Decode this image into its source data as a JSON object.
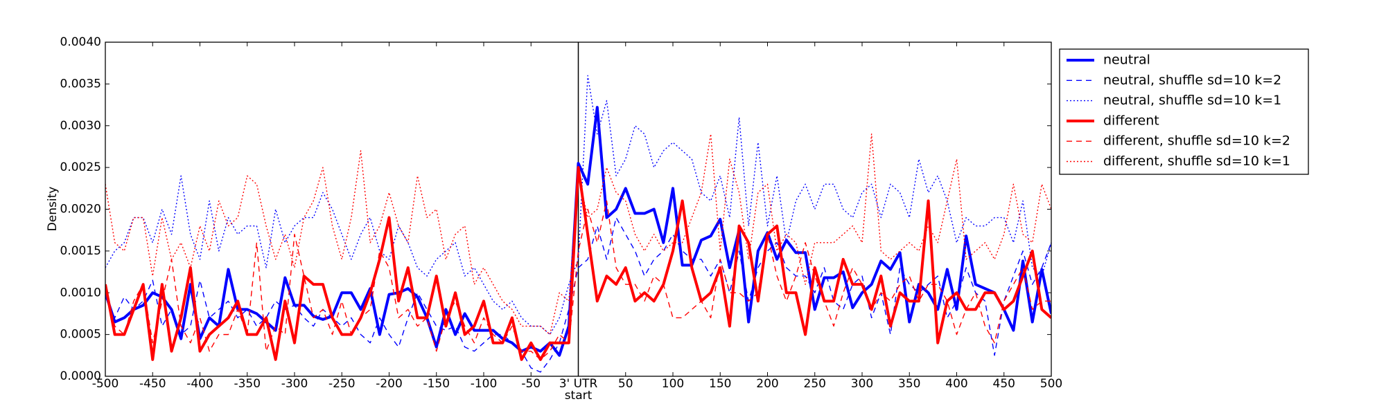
{
  "chart_data": {
    "type": "line",
    "ylabel": "Density",
    "x": [
      -500,
      -490,
      -480,
      -470,
      -460,
      -450,
      -440,
      -430,
      -420,
      -410,
      -400,
      -390,
      -380,
      -370,
      -360,
      -350,
      -340,
      -330,
      -320,
      -310,
      -300,
      -290,
      -280,
      -270,
      -260,
      -250,
      -240,
      -230,
      -220,
      -210,
      -200,
      -190,
      -180,
      -170,
      -160,
      -150,
      -140,
      -130,
      -120,
      -110,
      -100,
      -90,
      -80,
      -70,
      -60,
      -50,
      -40,
      -30,
      -20,
      -10,
      0,
      10,
      20,
      30,
      40,
      50,
      60,
      70,
      80,
      90,
      100,
      110,
      120,
      130,
      140,
      150,
      160,
      170,
      180,
      190,
      200,
      210,
      220,
      230,
      240,
      250,
      260,
      270,
      280,
      290,
      300,
      310,
      320,
      330,
      340,
      350,
      360,
      370,
      380,
      390,
      400,
      410,
      420,
      430,
      440,
      450,
      460,
      470,
      480,
      490,
      500
    ],
    "xlim": [
      -500,
      500
    ],
    "xticks": [
      -500,
      -450,
      -400,
      -350,
      -300,
      -250,
      -200,
      -150,
      -100,
      -50,
      {
        "value": 0,
        "label": "3' UTR\nstart"
      },
      50,
      100,
      150,
      200,
      250,
      300,
      350,
      400,
      450,
      500
    ],
    "ylim": [
      0,
      0.004
    ],
    "yticks": [
      {
        "value": 0,
        "label": "0.0000"
      },
      {
        "value": 0.0005,
        "label": "0.0005"
      },
      {
        "value": 0.001,
        "label": "0.0010"
      },
      {
        "value": 0.0015,
        "label": "0.0015"
      },
      {
        "value": 0.002,
        "label": "0.0020"
      },
      {
        "value": 0.0025,
        "label": "0.0025"
      },
      {
        "value": 0.003,
        "label": "0.0030"
      },
      {
        "value": 0.0035,
        "label": "0.0035"
      },
      {
        "value": 0.004,
        "label": "0.0040"
      }
    ],
    "grid": false,
    "legend": "outside right",
    "series": [
      {
        "name": "neutral",
        "color": "#0000ff",
        "style": "solid",
        "values": [
          0.001,
          0.00065,
          0.0007,
          0.0008,
          0.00085,
          0.001,
          0.00095,
          0.0008,
          0.00045,
          0.0011,
          0.00045,
          0.0007,
          0.0006,
          0.00128,
          0.0008,
          0.0008,
          0.00075,
          0.00065,
          0.00055,
          0.00118,
          0.00085,
          0.00085,
          0.00072,
          0.00068,
          0.00072,
          0.001,
          0.001,
          0.0008,
          0.00105,
          0.0005,
          0.00098,
          0.001,
          0.00105,
          0.00095,
          0.0007,
          0.00035,
          0.0008,
          0.0005,
          0.00075,
          0.00055,
          0.00055,
          0.00055,
          0.00045,
          0.0004,
          0.0003,
          0.00035,
          0.0003,
          0.0004,
          0.00025,
          0.0006,
          0.00255,
          0.0023,
          0.00322,
          0.0019,
          0.002,
          0.00225,
          0.00195,
          0.00195,
          0.002,
          0.0016,
          0.00225,
          0.00133,
          0.00133,
          0.00163,
          0.00168,
          0.00188,
          0.0013,
          0.00175,
          0.00065,
          0.0015,
          0.00172,
          0.0014,
          0.00163,
          0.00148,
          0.00148,
          0.0008,
          0.00118,
          0.00118,
          0.00125,
          0.00082,
          0.001,
          0.0011,
          0.00138,
          0.00128,
          0.00148,
          0.00065,
          0.0011,
          0.001,
          0.0008,
          0.00128,
          0.0008,
          0.00168,
          0.0011,
          0.00105,
          0.001,
          0.0008,
          0.00055,
          0.00138,
          0.00065,
          0.00128,
          0.00075
        ]
      },
      {
        "name": "neutral, shuffle sd=10 k=2",
        "color": "#0000ff",
        "style": "dashed",
        "values": [
          0.00095,
          0.0007,
          0.00095,
          0.0008,
          0.0009,
          0.00115,
          0.0006,
          0.0008,
          0.0005,
          0.0006,
          0.00115,
          0.0007,
          0.0008,
          0.0009,
          0.0007,
          0.0008,
          0.0006,
          0.0007,
          0.0009,
          0.0008,
          0.00085,
          0.0007,
          0.0006,
          0.0008,
          0.0007,
          0.0006,
          0.0007,
          0.0005,
          0.0004,
          0.0007,
          0.0005,
          0.00035,
          0.0007,
          0.001,
          0.0008,
          0.0006,
          0.00055,
          0.0006,
          0.00035,
          0.0003,
          0.0004,
          0.0005,
          0.0005,
          0.0004,
          0.0003,
          0.0001,
          5e-05,
          0.0002,
          0.0004,
          0.0008,
          0.0013,
          0.0014,
          0.0018,
          0.0014,
          0.0019,
          0.0017,
          0.0015,
          0.0012,
          0.0014,
          0.0015,
          0.0017,
          0.0015,
          0.0014,
          0.0014,
          0.0012,
          0.0014,
          0.001,
          0.0015,
          0.0009,
          0.0013,
          0.0015,
          0.0016,
          0.0013,
          0.0012,
          0.0012,
          0.001,
          0.0013,
          0.0009,
          0.0008,
          0.0011,
          0.0012,
          0.0007,
          0.001,
          0.0005,
          0.0013,
          0.0011,
          0.001,
          0.0011,
          0.0012,
          0.0007,
          0.0009,
          0.0013,
          0.001,
          0.0009,
          0.00025,
          0.0009,
          0.0012,
          0.0015,
          0.0011,
          0.0013,
          0.0016
        ]
      },
      {
        "name": "neutral, shuffle sd=10 k=1",
        "color": "#0000ff",
        "style": "dotted",
        "values": [
          0.0013,
          0.0015,
          0.0016,
          0.0019,
          0.0019,
          0.0016,
          0.002,
          0.0017,
          0.0024,
          0.0017,
          0.0014,
          0.0021,
          0.0015,
          0.0019,
          0.0017,
          0.0018,
          0.0018,
          0.0013,
          0.002,
          0.0016,
          0.0018,
          0.0019,
          0.0019,
          0.0022,
          0.002,
          0.0017,
          0.0014,
          0.0017,
          0.0019,
          0.0015,
          0.0014,
          0.0018,
          0.0016,
          0.0013,
          0.0012,
          0.0014,
          0.0015,
          0.0016,
          0.0012,
          0.0013,
          0.0011,
          0.0009,
          0.0008,
          0.0009,
          0.0007,
          0.0006,
          0.0006,
          0.0005,
          0.0007,
          0.0011,
          0.0014,
          0.0036,
          0.0029,
          0.0033,
          0.0024,
          0.0026,
          0.003,
          0.0029,
          0.0025,
          0.0027,
          0.0028,
          0.0027,
          0.0026,
          0.0022,
          0.0021,
          0.0024,
          0.0019,
          0.0031,
          0.0018,
          0.0028,
          0.0018,
          0.0024,
          0.0016,
          0.0021,
          0.0023,
          0.002,
          0.0023,
          0.0023,
          0.002,
          0.0019,
          0.0022,
          0.0023,
          0.0019,
          0.0023,
          0.0022,
          0.0019,
          0.0026,
          0.0022,
          0.0024,
          0.0021,
          0.0016,
          0.0019,
          0.0018,
          0.0018,
          0.0019,
          0.0019,
          0.0016,
          0.0021,
          0.0013,
          0.0012,
          0.0016
        ]
      },
      {
        "name": "different",
        "color": "#ff0000",
        "style": "solid",
        "values": [
          0.0011,
          0.0005,
          0.0005,
          0.0008,
          0.0011,
          0.0002,
          0.0011,
          0.0003,
          0.0007,
          0.0013,
          0.0003,
          0.0005,
          0.0006,
          0.0007,
          0.0009,
          0.0005,
          0.0005,
          0.0007,
          0.0002,
          0.0009,
          0.0004,
          0.0012,
          0.0011,
          0.0011,
          0.0007,
          0.0005,
          0.0005,
          0.0007,
          0.001,
          0.0014,
          0.0019,
          0.0009,
          0.0013,
          0.0007,
          0.0007,
          0.0012,
          0.0006,
          0.001,
          0.0005,
          0.0006,
          0.0009,
          0.0004,
          0.0004,
          0.0007,
          0.0002,
          0.0004,
          0.0002,
          0.0004,
          0.0004,
          0.0004,
          0.0025,
          0.0017,
          0.0009,
          0.0012,
          0.0011,
          0.0013,
          0.0009,
          0.001,
          0.0009,
          0.0011,
          0.0015,
          0.0021,
          0.0013,
          0.0009,
          0.001,
          0.0013,
          0.0006,
          0.0018,
          0.0016,
          0.0009,
          0.0017,
          0.0018,
          0.001,
          0.001,
          0.0005,
          0.0013,
          0.0009,
          0.0009,
          0.0014,
          0.0011,
          0.0011,
          0.0008,
          0.0012,
          0.0006,
          0.001,
          0.0009,
          0.0009,
          0.0021,
          0.0004,
          0.0009,
          0.001,
          0.0008,
          0.0008,
          0.001,
          0.001,
          0.0008,
          0.0009,
          0.0012,
          0.0015,
          0.0008,
          0.0007
        ]
      },
      {
        "name": "different, shuffle sd=10 k=2",
        "color": "#ff0000",
        "style": "dashed",
        "values": [
          0.0011,
          0.0006,
          0.0005,
          0.0009,
          0.0011,
          0.0004,
          0.0009,
          0.0014,
          0.0006,
          0.0004,
          0.0007,
          0.0003,
          0.0005,
          0.0005,
          0.0008,
          0.0005,
          0.0016,
          0.0003,
          0.0006,
          0.0005,
          0.0017,
          0.0012,
          0.0007,
          0.0008,
          0.0005,
          0.0009,
          0.0005,
          0.0007,
          0.0008,
          0.0015,
          0.0013,
          0.0007,
          0.0008,
          0.0006,
          0.0007,
          0.0003,
          0.0007,
          0.0009,
          0.0006,
          0.0004,
          0.0007,
          0.0005,
          0.0004,
          0.0006,
          0.0003,
          0.0003,
          0.0002,
          0.0003,
          0.0005,
          0.0004,
          0.0015,
          0.002,
          0.0016,
          0.0021,
          0.0013,
          0.0011,
          0.0011,
          0.0009,
          0.0012,
          0.0011,
          0.0007,
          0.0007,
          0.0008,
          0.0009,
          0.0007,
          0.0014,
          0.001,
          0.001,
          0.0009,
          0.001,
          0.0017,
          0.0012,
          0.0009,
          0.0012,
          0.0016,
          0.0012,
          0.0009,
          0.0006,
          0.001,
          0.0013,
          0.0011,
          0.0008,
          0.001,
          0.0009,
          0.0011,
          0.0012,
          0.0009,
          0.0011,
          0.0011,
          0.0009,
          0.0005,
          0.0008,
          0.001,
          0.0006,
          0.0004,
          0.0009,
          0.0011,
          0.0013,
          0.0008,
          0.0009,
          0.0009
        ]
      },
      {
        "name": "different, shuffle sd=10 k=1",
        "color": "#ff0000",
        "style": "dotted",
        "values": [
          0.0023,
          0.0016,
          0.0015,
          0.0019,
          0.0019,
          0.0012,
          0.0019,
          0.0014,
          0.0016,
          0.0013,
          0.0018,
          0.0015,
          0.0021,
          0.0018,
          0.0019,
          0.0024,
          0.0023,
          0.0018,
          0.0014,
          0.0017,
          0.0013,
          0.0019,
          0.0021,
          0.0025,
          0.0018,
          0.0014,
          0.0019,
          0.0027,
          0.0016,
          0.0018,
          0.0022,
          0.0018,
          0.0016,
          0.0024,
          0.0019,
          0.002,
          0.0014,
          0.0017,
          0.0018,
          0.0011,
          0.0013,
          0.0011,
          0.0009,
          0.0008,
          0.0006,
          0.0006,
          0.0006,
          0.0005,
          0.001,
          0.0009,
          0.0024,
          0.0019,
          0.002,
          0.0025,
          0.0022,
          0.0021,
          0.0017,
          0.0015,
          0.0017,
          0.0015,
          0.0016,
          0.0016,
          0.0019,
          0.0022,
          0.0029,
          0.0015,
          0.0026,
          0.0022,
          0.0014,
          0.0022,
          0.0023,
          0.0015,
          0.0017,
          0.0016,
          0.0011,
          0.0016,
          0.0016,
          0.0016,
          0.0017,
          0.0018,
          0.0016,
          0.0029,
          0.0015,
          0.0014,
          0.0015,
          0.0016,
          0.0015,
          0.0018,
          0.0016,
          0.0021,
          0.0026,
          0.0014,
          0.0015,
          0.0016,
          0.0014,
          0.0017,
          0.0023,
          0.0017,
          0.0016,
          0.0023,
          0.002
        ]
      }
    ]
  }
}
